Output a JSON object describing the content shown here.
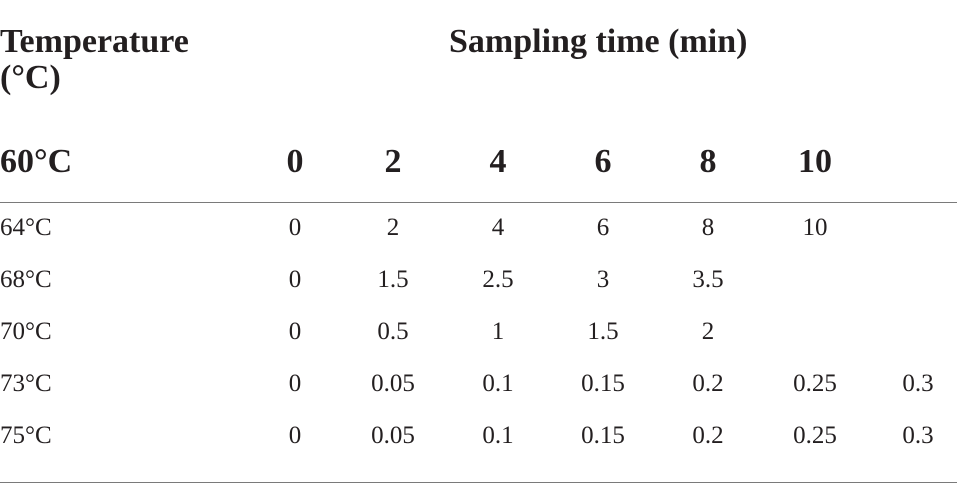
{
  "header": {
    "temperature_line1": "Temperature",
    "temperature_line2": "(°C)",
    "sampling_time": "Sampling time (min)"
  },
  "subheader": {
    "label": "60°C",
    "times": [
      "0",
      "2",
      "4",
      "6",
      "8",
      "10",
      ""
    ]
  },
  "rows": [
    {
      "label": "64°C",
      "values": [
        "0",
        "2",
        "4",
        "6",
        "8",
        "10",
        ""
      ]
    },
    {
      "label": "68°C",
      "values": [
        "0",
        "1.5",
        "2.5",
        "3",
        "3.5",
        "",
        ""
      ]
    },
    {
      "label": "70°C",
      "values": [
        "0",
        "0.5",
        "1",
        "1.5",
        "2",
        "",
        ""
      ]
    },
    {
      "label": "73°C",
      "values": [
        "0",
        "0.05",
        "0.1",
        "0.15",
        "0.2",
        "0.25",
        "0.3"
      ]
    },
    {
      "label": "75°C",
      "values": [
        "0",
        "0.05",
        "0.1",
        "0.15",
        "0.2",
        "0.25",
        "0.3"
      ]
    }
  ]
}
